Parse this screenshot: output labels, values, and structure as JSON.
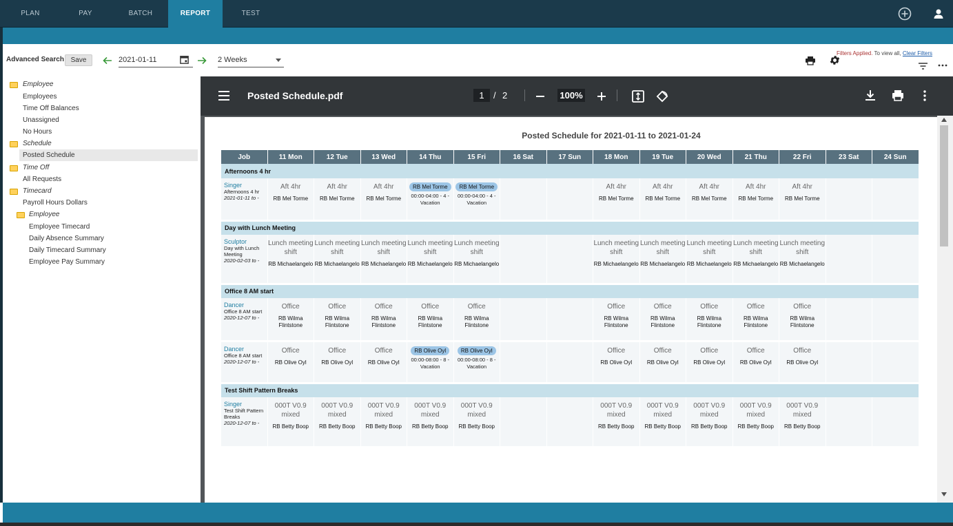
{
  "nav": {
    "tabs": [
      "PLAN",
      "PAY",
      "BATCH",
      "REPORT",
      "TEST"
    ],
    "active": "REPORT"
  },
  "toolbar": {
    "advanced_search": "Advanced Search",
    "save": "Save",
    "date": "2021-01-11",
    "period": "2 Weeks",
    "filters_applied": "Filters Applied.",
    "filters_rest": " To view all, ",
    "clear_filters": "Clear Filters"
  },
  "sidebar": {
    "items": [
      {
        "label": "Employee",
        "folder": true
      },
      {
        "label": "Employees"
      },
      {
        "label": "Time Off Balances"
      },
      {
        "label": "Unassigned"
      },
      {
        "label": "No Hours"
      },
      {
        "label": "Schedule",
        "folder": true
      },
      {
        "label": "Posted Schedule",
        "selected": true
      },
      {
        "label": "Time Off",
        "folder": true
      },
      {
        "label": "All Requests"
      },
      {
        "label": "Timecard",
        "folder": true
      },
      {
        "label": "Payroll Hours Dollars"
      },
      {
        "label": "Employee",
        "folder": true
      },
      {
        "label": "Employee Timecard"
      },
      {
        "label": "Daily Absence Summary"
      },
      {
        "label": "Daily Timecard Summary"
      },
      {
        "label": "Employee Pay Summary"
      }
    ]
  },
  "viewer": {
    "filename": "Posted Schedule.pdf",
    "page": "1",
    "slash": "/",
    "total_pages": "2",
    "zoom": "100%"
  },
  "report": {
    "title": "Posted Schedule for 2021-01-11 to 2021-01-24",
    "columns": [
      "Job",
      "11 Mon",
      "12 Tue",
      "13 Wed",
      "14 Thu",
      "15 Fri",
      "16 Sat",
      "17 Sun",
      "18 Mon",
      "19 Tue",
      "20 Wed",
      "21 Thu",
      "22 Fri",
      "23 Sat",
      "24 Sun"
    ],
    "groups": [
      {
        "name": "Afternoons 4 hr",
        "rows": [
          {
            "job": "Singer",
            "desc": "Afternoons 4 hr",
            "date": "2021-01-11 to -",
            "shift": "Aft 4hr",
            "emp": "RB Mel Torme",
            "pill": "RB Mel Torme",
            "vac": "00:00-04:00 - 4 - Vacation",
            "vacdays": [
              3,
              4
            ]
          }
        ]
      },
      {
        "name": "Day with Lunch Meeting",
        "rows": [
          {
            "job": "Sculptor",
            "desc": "Day with Lunch Meeting",
            "date": "2020-02-03 to -",
            "shift": "Lunch meeting shift",
            "emp": "RB Michaelangelo",
            "vacdays": []
          }
        ]
      },
      {
        "name": "Office 8 AM start",
        "rows": [
          {
            "job": "Dancer",
            "desc": "Office 8 AM start",
            "date": "2020-12-07 to -",
            "shift": "Office",
            "emp": "RB Wilma Flintstone",
            "vacdays": []
          },
          {
            "job": "Dancer",
            "desc": "Office 8 AM start",
            "date": "2020-12-07 to -",
            "shift": "Office",
            "emp": "RB Olive Oyl",
            "pill": "RB Olive Oyl",
            "vac": "00:00-08:00 - 8 - Vacation",
            "vacdays": [
              3,
              4
            ]
          }
        ]
      },
      {
        "name": "Test Shift Pattern Breaks",
        "rows": [
          {
            "job": "Singer",
            "desc": "Test Shift Pattern Breaks",
            "date": "2020-12-07 to -",
            "shift": "000T V0.9 mixed",
            "emp": "RB Betty Boop",
            "vacdays": []
          }
        ]
      }
    ],
    "workdays": [
      0,
      1,
      2,
      3,
      4,
      7,
      8,
      9,
      10,
      11
    ]
  }
}
